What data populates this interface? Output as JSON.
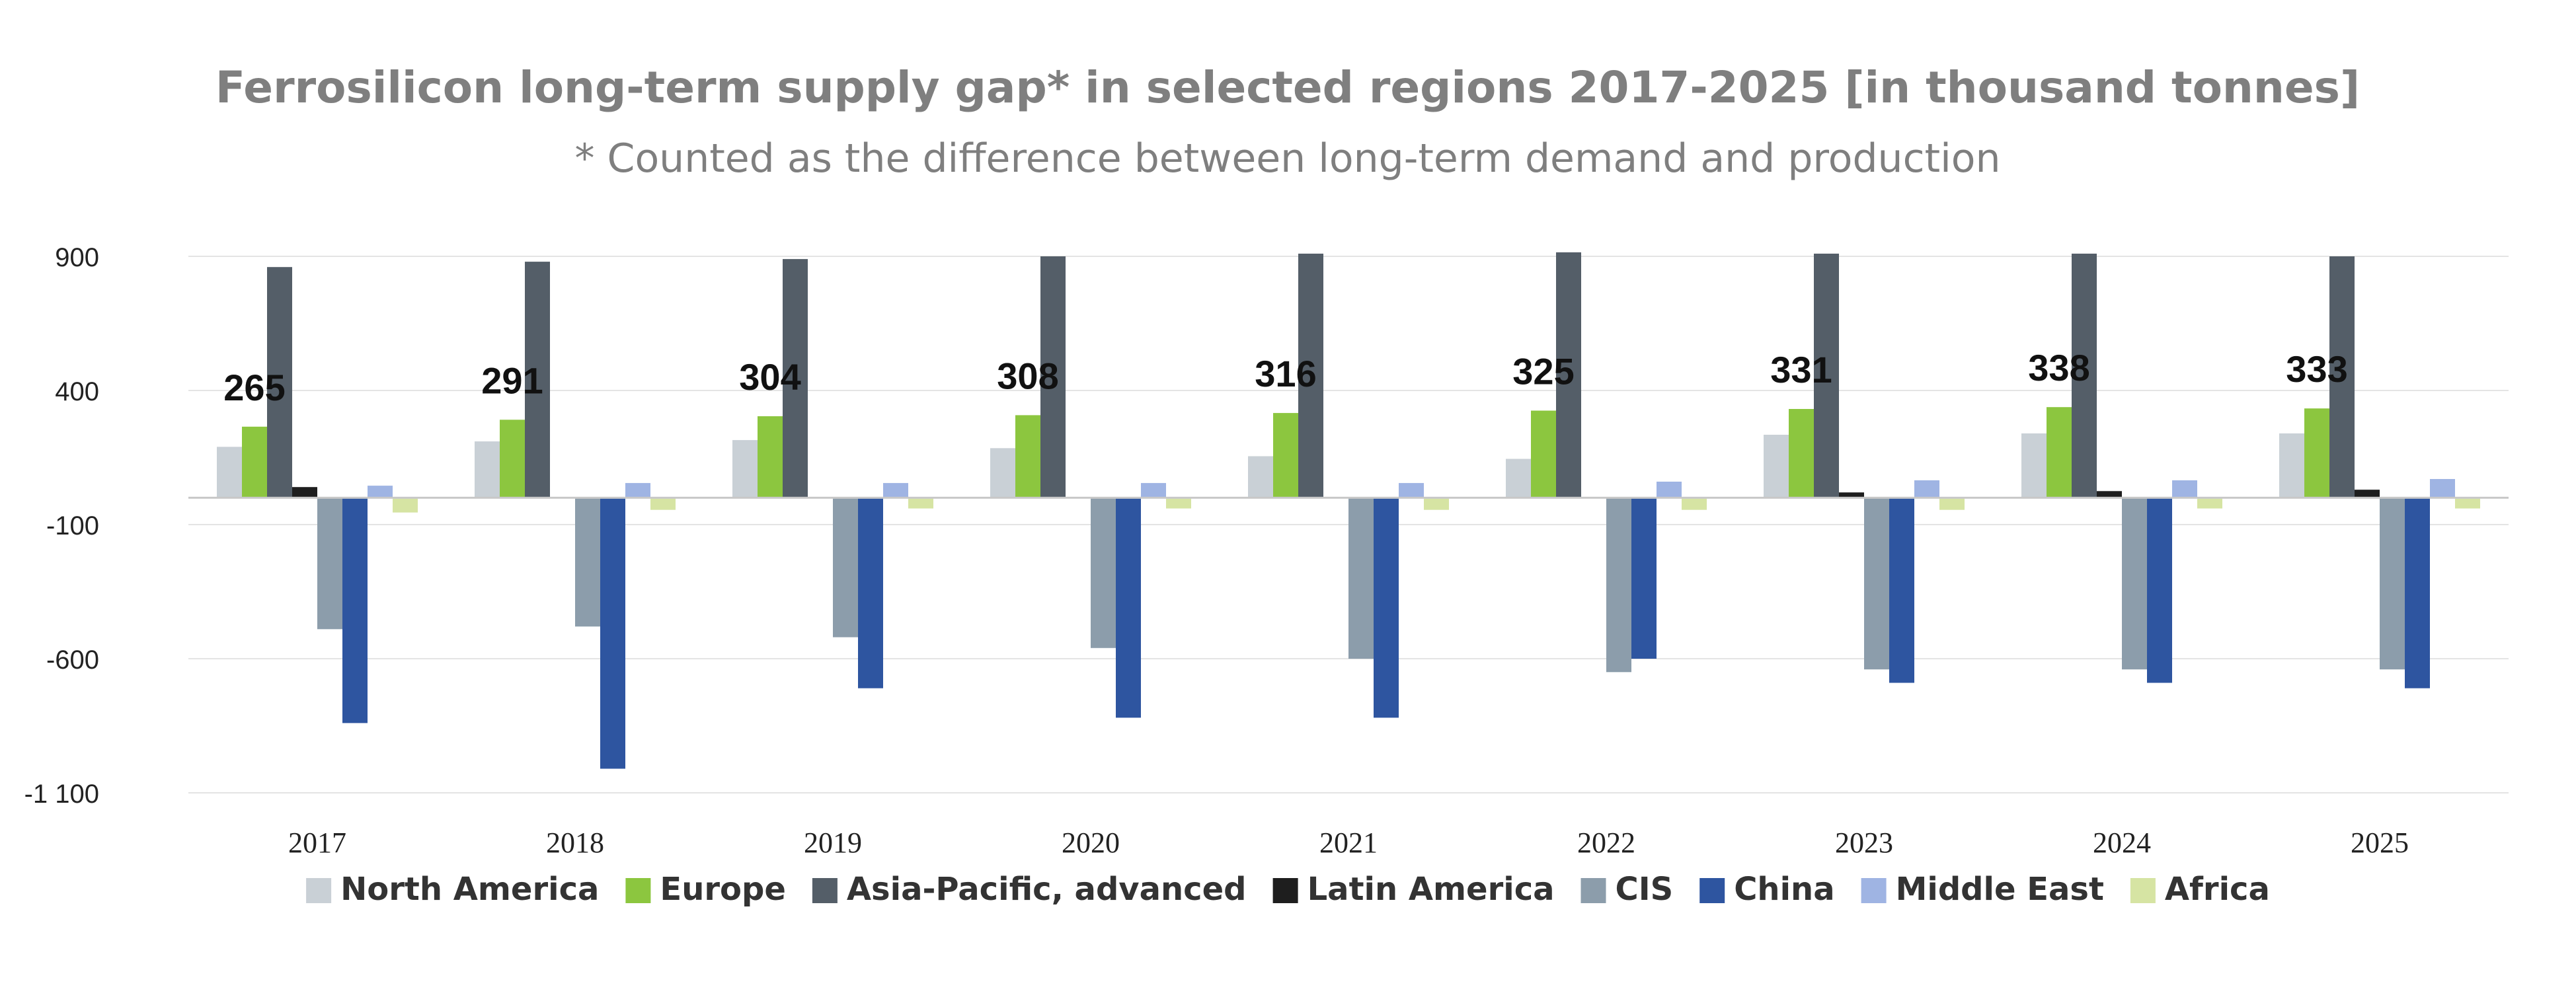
{
  "chart_data": {
    "type": "bar",
    "title": "Ferrosilicon long-term supply gap* in selected regions 2017-2025 [in thousand tonnes]",
    "subtitle": "* Counted as the difference between long-term demand and production",
    "xlabel": "",
    "ylabel": "",
    "ylim": [
      -1100,
      900
    ],
    "yticks": [
      900,
      400,
      -100,
      -600,
      -1100
    ],
    "ytick_labels": [
      "900",
      "400",
      "-100",
      "-600",
      "-1 100"
    ],
    "grid": true,
    "legend_position": "bottom",
    "categories": [
      "2017",
      "2018",
      "2019",
      "2020",
      "2021",
      "2022",
      "2023",
      "2024",
      "2025"
    ],
    "europe_labels": [
      "265",
      "291",
      "304",
      "308",
      "316",
      "325",
      "331",
      "338",
      "333"
    ],
    "series": [
      {
        "name": "North America",
        "color": "#c9d0d6",
        "values": [
          190,
          210,
          215,
          185,
          155,
          145,
          235,
          240,
          240
        ]
      },
      {
        "name": "Europe",
        "color": "#8cc63f",
        "values": [
          265,
          291,
          304,
          308,
          316,
          325,
          331,
          338,
          333
        ]
      },
      {
        "name": "Asia-Pacific, advanced",
        "color": "#545e68",
        "values": [
          860,
          880,
          890,
          900,
          910,
          915,
          910,
          910,
          900
        ]
      },
      {
        "name": "Latin America",
        "color": "#1e1e1e",
        "values": [
          40,
          0,
          0,
          0,
          0,
          0,
          20,
          25,
          30
        ]
      },
      {
        "name": "CIS",
        "color": "#8c9dab",
        "values": [
          -490,
          -480,
          -520,
          -560,
          -600,
          -650,
          -640,
          -640,
          -640
        ]
      },
      {
        "name": "China",
        "color": "#2e55a0",
        "values": [
          -840,
          -1010,
          -710,
          -820,
          -820,
          -600,
          -690,
          -690,
          -710
        ]
      },
      {
        "name": "Middle East",
        "color": "#9fb4e3",
        "values": [
          45,
          55,
          55,
          55,
          55,
          60,
          65,
          65,
          70
        ]
      },
      {
        "name": "Africa",
        "color": "#d6e4a3",
        "values": [
          -55,
          -45,
          -40,
          -40,
          -45,
          -45,
          -45,
          -40,
          -40
        ]
      }
    ]
  }
}
